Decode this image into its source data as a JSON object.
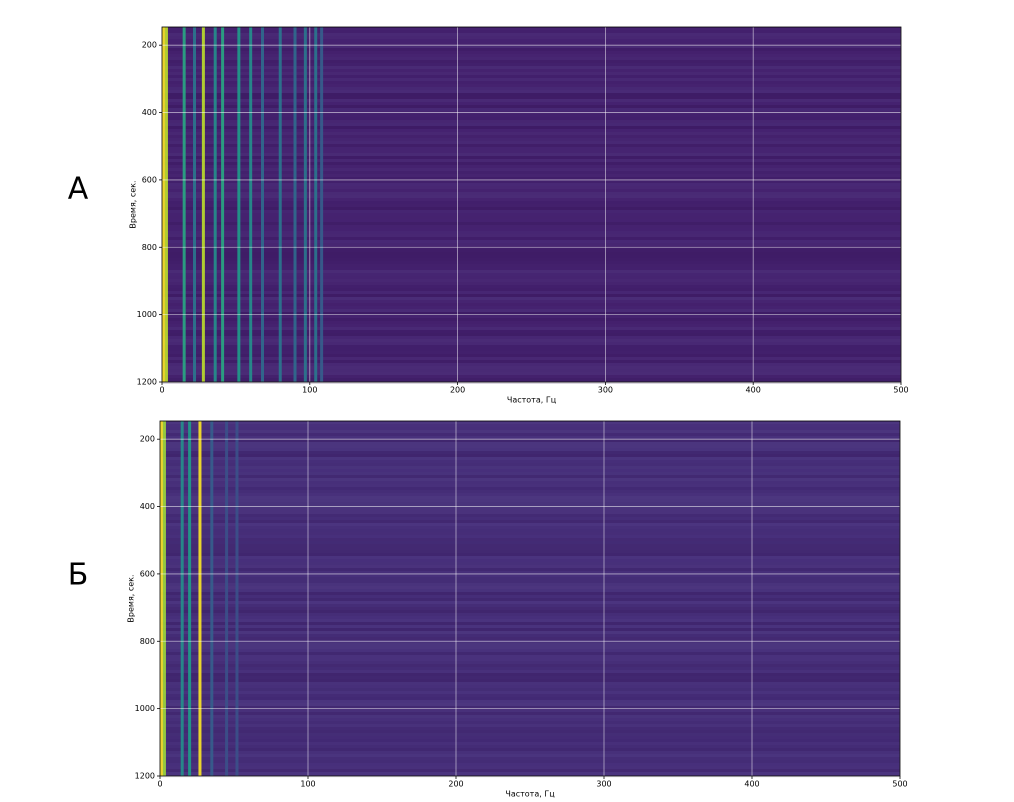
{
  "chart_data": [
    {
      "type": "heatmap",
      "panel_label": "А",
      "xlabel": "Частота, Гц",
      "ylabel": "Время, сек.",
      "xlim": [
        0,
        500
      ],
      "ylim": [
        146,
        1200
      ],
      "y_inverted": true,
      "xticks": [
        0,
        100,
        200,
        300,
        400,
        500
      ],
      "yticks": [
        200,
        400,
        600,
        800,
        1000,
        1200
      ],
      "grid": true,
      "colormap": "viridis",
      "x": [
        1,
        3,
        15,
        22,
        28,
        36,
        41,
        52,
        60,
        68,
        80,
        90,
        97,
        104,
        108
      ],
      "values": [
        1,
        0.9,
        0.6,
        0.4,
        0.9,
        0.5,
        0.6,
        0.55,
        0.5,
        0.35,
        0.4,
        0.35,
        0.4,
        0.4,
        0.3
      ]
    },
    {
      "type": "heatmap",
      "panel_label": "Б",
      "xlabel": "Частота, Гц",
      "ylabel": "Время, сек.",
      "xlim": [
        0,
        500
      ],
      "ylim": [
        146,
        1200
      ],
      "y_inverted": true,
      "xticks": [
        0,
        100,
        200,
        300,
        400,
        500
      ],
      "yticks": [
        200,
        400,
        600,
        800,
        1000,
        1200
      ],
      "grid": true,
      "colormap": "viridis",
      "x": [
        1,
        3,
        15,
        20,
        27,
        35,
        45,
        52
      ],
      "values": [
        1,
        0.85,
        0.5,
        0.55,
        1,
        0.3,
        0.25,
        0.25
      ]
    }
  ]
}
